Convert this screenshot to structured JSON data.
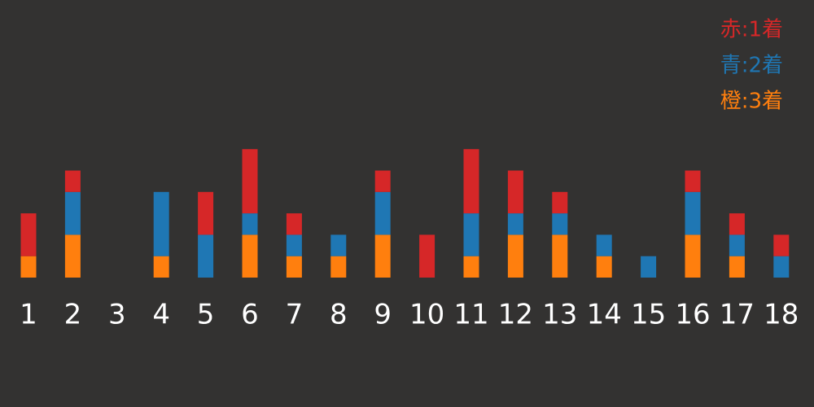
{
  "chart_data": {
    "type": "stacked_bar",
    "categories": [
      "1",
      "2",
      "3",
      "4",
      "5",
      "6",
      "7",
      "8",
      "9",
      "10",
      "11",
      "12",
      "13",
      "14",
      "15",
      "16",
      "17",
      "18"
    ],
    "series": [
      {
        "name": "赤:1着",
        "color": "#d62728",
        "values": [
          2,
          1,
          0,
          0,
          2,
          3,
          1,
          0,
          1,
          2,
          3,
          2,
          1,
          0,
          0,
          1,
          1,
          1
        ]
      },
      {
        "name": "青:2着",
        "color": "#1f77b4",
        "values": [
          0,
          2,
          0,
          3,
          2,
          1,
          1,
          1,
          2,
          0,
          2,
          1,
          1,
          1,
          1,
          2,
          1,
          1
        ]
      },
      {
        "name": "橙:3着",
        "color": "#ff7f0e",
        "values": [
          1,
          2,
          0,
          1,
          0,
          2,
          1,
          1,
          2,
          0,
          1,
          2,
          2,
          1,
          0,
          2,
          1,
          0
        ]
      }
    ],
    "legend": "upper right"
  }
}
